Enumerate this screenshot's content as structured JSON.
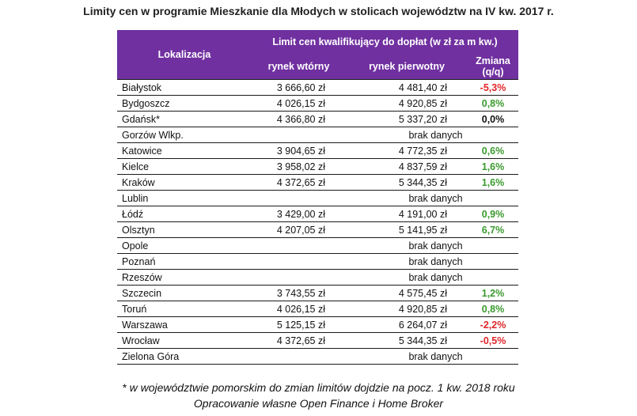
{
  "title": "Limity cen w programie Mieszkanie dla Młodych w stolicach województw na IV kw. 2017 r.",
  "table": {
    "col_location": "Lokalizacja",
    "col_group": "Limit cen kwalifikujący do dopłat (w zł za m kw.)",
    "col_secondary": "rynek wtórny",
    "col_primary": "rynek pierwotny",
    "col_change": "Zmiana (q/q)",
    "rows": [
      {
        "city": "Białystok",
        "secondary": "3 666,60 zł",
        "primary": "4 481,40 zł",
        "change": "-5,3%",
        "trend": "neg"
      },
      {
        "city": "Bydgoszcz",
        "secondary": "4 026,15 zł",
        "primary": "4 920,85 zł",
        "change": "0,8%",
        "trend": "pos"
      },
      {
        "city": "Gdańsk*",
        "secondary": "4 366,80 zł",
        "primary": "5 337,20 zł",
        "change": "0,0%",
        "trend": "zero"
      },
      {
        "city": "Gorzów Wlkp.",
        "nodata": "brak danych"
      },
      {
        "city": "Katowice",
        "secondary": "3 904,65 zł",
        "primary": "4 772,35 zł",
        "change": "0,6%",
        "trend": "pos"
      },
      {
        "city": "Kielce",
        "secondary": "3 958,02 zł",
        "primary": "4 837,59 zł",
        "change": "1,6%",
        "trend": "pos"
      },
      {
        "city": "Kraków",
        "secondary": "4 372,65 zł",
        "primary": "5 344,35 zł",
        "change": "1,6%",
        "trend": "pos"
      },
      {
        "city": "Lublin",
        "nodata": "brak danych"
      },
      {
        "city": "Łódź",
        "secondary": "3 429,00 zł",
        "primary": "4 191,00 zł",
        "change": "0,9%",
        "trend": "pos"
      },
      {
        "city": "Olsztyn",
        "secondary": "4 207,05 zł",
        "primary": "5 141,95 zł",
        "change": "6,7%",
        "trend": "pos"
      },
      {
        "city": "Opole",
        "nodata": "brak danych"
      },
      {
        "city": "Poznań",
        "nodata": "brak danych"
      },
      {
        "city": "Rzeszów",
        "nodata": "brak danych"
      },
      {
        "city": "Szczecin",
        "secondary": "3 743,55 zł",
        "primary": "4 575,45 zł",
        "change": "1,2%",
        "trend": "pos"
      },
      {
        "city": "Toruń",
        "secondary": "4 026,15 zł",
        "primary": "4 920,85 zł",
        "change": "0,8%",
        "trend": "pos"
      },
      {
        "city": "Warszawa",
        "secondary": "5 125,15 zł",
        "primary": "6 264,07 zł",
        "change": "-2,2%",
        "trend": "neg"
      },
      {
        "city": "Wrocław",
        "secondary": "4 372,65 zł",
        "primary": "5 344,35 zł",
        "change": "-0,5%",
        "trend": "neg"
      },
      {
        "city": "Zielona Góra",
        "nodata": "brak danych"
      }
    ]
  },
  "footnote": "* w województwie pomorskim do zmian limitów dojdzie na pocz. 1 kw. 2018 roku",
  "source": "Opracowanie własne Open Finance i Home Broker",
  "colors": {
    "header_bg": "#7030a0",
    "positive": "#3a9a2e",
    "negative": "#e0262a"
  }
}
